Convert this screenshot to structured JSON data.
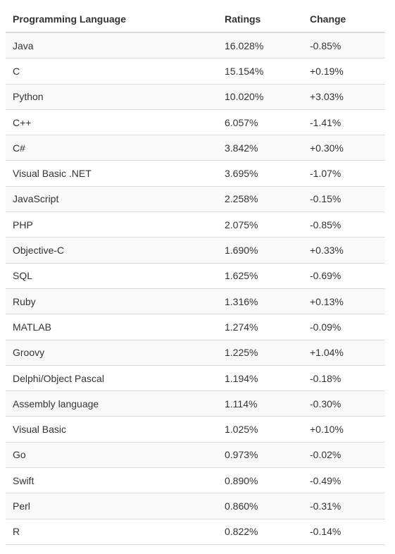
{
  "table": {
    "headers": [
      "Programming Language",
      "Ratings",
      "Change"
    ],
    "rows": [
      [
        "Java",
        "16.028%",
        "-0.85%"
      ],
      [
        "C",
        "15.154%",
        "+0.19%"
      ],
      [
        "Python",
        "10.020%",
        "+3.03%"
      ],
      [
        "C++",
        "6.057%",
        "-1.41%"
      ],
      [
        "C#",
        "3.842%",
        "+0.30%"
      ],
      [
        "Visual Basic .NET",
        "3.695%",
        "-1.07%"
      ],
      [
        "JavaScript",
        "2.258%",
        "-0.15%"
      ],
      [
        "PHP",
        "2.075%",
        "-0.85%"
      ],
      [
        "Objective-C",
        "1.690%",
        "+0.33%"
      ],
      [
        "SQL",
        "1.625%",
        "-0.69%"
      ],
      [
        "Ruby",
        "1.316%",
        "+0.13%"
      ],
      [
        "MATLAB",
        "1.274%",
        "-0.09%"
      ],
      [
        "Groovy",
        "1.225%",
        "+1.04%"
      ],
      [
        "Delphi/Object Pascal",
        "1.194%",
        "-0.18%"
      ],
      [
        "Assembly language",
        "1.114%",
        "-0.30%"
      ],
      [
        "Visual Basic",
        "1.025%",
        "+0.10%"
      ],
      [
        "Go",
        "0.973%",
        "-0.02%"
      ],
      [
        "Swift",
        "0.890%",
        "-0.49%"
      ],
      [
        "Perl",
        "0.860%",
        "-0.31%"
      ],
      [
        "R",
        "0.822%",
        "-0.14%"
      ]
    ]
  }
}
